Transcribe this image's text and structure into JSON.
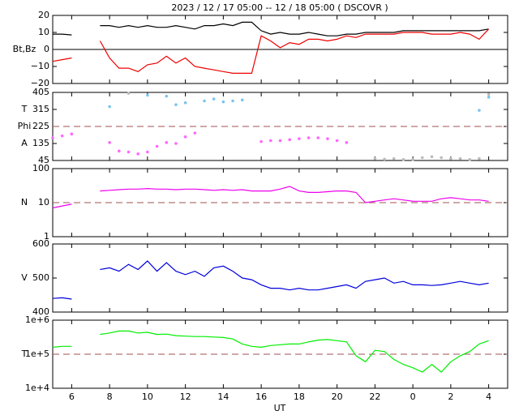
{
  "chart_data": [
    {
      "type": "line",
      "title": "2023 / 12 / 17  05:00 -- 12 / 18  05:00 ( DSCOVR )",
      "ylabel": [
        "Bt,Bz"
      ],
      "ylim": [
        -20,
        20
      ],
      "yticks": [
        {
          "value": -20,
          "label": "−20"
        },
        {
          "value": -10,
          "label": "−10"
        },
        0,
        10,
        20
      ],
      "ref_line": 0,
      "ref_style": "solid",
      "x": [
        5,
        5.5,
        6,
        6.5,
        7,
        7.5,
        8,
        8.5,
        9,
        9.5,
        10,
        10.5,
        11,
        11.5,
        12,
        12.5,
        13,
        13.5,
        14,
        14.5,
        15,
        15.5,
        16,
        16.5,
        17,
        17.5,
        18,
        18.5,
        19,
        19.5,
        20,
        20.5,
        21,
        21.5,
        22,
        22.5,
        23,
        23.5,
        24,
        24.5,
        25,
        25.5,
        26,
        26.5,
        27,
        27.5,
        28
      ],
      "series": [
        {
          "color": "#000000",
          "values": [
            9,
            9,
            8.5,
            null,
            null,
            14,
            14,
            13,
            14,
            13,
            14,
            13,
            13,
            14,
            13,
            12,
            14,
            14,
            15,
            14,
            16,
            16,
            11,
            9,
            10,
            9,
            9,
            10,
            9,
            8,
            8,
            9,
            9,
            10,
            10,
            10,
            10,
            11,
            11,
            11,
            11,
            11,
            11,
            11,
            11,
            11,
            12
          ]
        },
        {
          "color": "#ee0000",
          "values": [
            -7,
            -6,
            -5,
            null,
            null,
            5,
            -5,
            -11,
            -11,
            -13,
            -9,
            -8,
            -4,
            -8,
            -5,
            -10,
            -11,
            -12,
            -13,
            -14,
            -14,
            -14,
            8,
            5,
            1,
            4,
            3,
            6,
            6,
            5,
            6,
            8,
            7,
            9,
            9,
            9,
            9,
            10,
            10,
            10,
            9,
            9,
            9,
            10,
            9,
            6,
            12
          ]
        }
      ]
    },
    {
      "type": "scatter",
      "ylabel": [
        "T",
        "Phi",
        "A"
      ],
      "ylim": [
        45,
        405
      ],
      "yticks": [
        45,
        135,
        225,
        315,
        405
      ],
      "ref_line": 225,
      "ref_style": "dashed",
      "x": [
        5,
        5.5,
        6,
        6.5,
        7,
        7.5,
        8,
        8.5,
        9,
        9.5,
        10,
        10.5,
        11,
        11.5,
        12,
        12.5,
        13,
        13.5,
        14,
        14.5,
        15,
        15.5,
        16,
        16.5,
        17,
        17.5,
        18,
        18.5,
        19,
        19.5,
        20,
        20.5,
        21,
        21.5,
        22,
        22.5,
        23,
        23.5,
        24,
        24.5,
        25,
        25.5,
        26,
        26.5,
        27,
        27.5,
        28
      ],
      "series": [
        {
          "color": "#ff66ff",
          "values": [
            165,
            175,
            185,
            null,
            null,
            null,
            140,
            95,
            90,
            80,
            90,
            120,
            140,
            135,
            170,
            190,
            null,
            null,
            null,
            null,
            null,
            null,
            145,
            150,
            150,
            155,
            160,
            165,
            165,
            160,
            150,
            140,
            null,
            null,
            null,
            null,
            null,
            null,
            null,
            null,
            null,
            null,
            null,
            null,
            null,
            null,
            null
          ]
        },
        {
          "color": "#77c4f0",
          "values": [
            null,
            null,
            null,
            null,
            null,
            null,
            330,
            null,
            null,
            null,
            390,
            null,
            385,
            340,
            350,
            null,
            360,
            370,
            355,
            360,
            365,
            null,
            null,
            null,
            null,
            null,
            null,
            null,
            null,
            null,
            null,
            null,
            null,
            null,
            null,
            null,
            null,
            null,
            null,
            null,
            null,
            null,
            null,
            null,
            null,
            310,
            380
          ]
        },
        {
          "color": "#bbbbbb",
          "values": [
            null,
            null,
            null,
            null,
            null,
            null,
            null,
            null,
            400,
            null,
            null,
            null,
            null,
            null,
            null,
            null,
            null,
            null,
            null,
            null,
            null,
            null,
            null,
            null,
            null,
            null,
            null,
            null,
            null,
            null,
            null,
            null,
            null,
            null,
            55,
            52,
            55,
            50,
            50,
            60,
            65,
            60,
            55,
            55,
            50,
            55,
            395
          ]
        }
      ]
    },
    {
      "type": "line",
      "ylabel": [
        "N"
      ],
      "log": true,
      "ylim": [
        1,
        100
      ],
      "yticks": [
        1,
        10,
        100
      ],
      "ref_line": 10,
      "ref_style": "dashed",
      "x": [
        5,
        5.5,
        6,
        6.5,
        7,
        7.5,
        8,
        8.5,
        9,
        9.5,
        10,
        10.5,
        11,
        11.5,
        12,
        12.5,
        13,
        13.5,
        14,
        14.5,
        15,
        15.5,
        16,
        16.5,
        17,
        17.5,
        18,
        18.5,
        19,
        19.5,
        20,
        20.5,
        21,
        21.5,
        22,
        22.5,
        23,
        23.5,
        24,
        24.5,
        25,
        25.5,
        26,
        26.5,
        27,
        27.5,
        28
      ],
      "series": [
        {
          "color": "#ee00ee",
          "values": [
            7,
            8,
            9,
            null,
            null,
            22,
            23,
            24,
            25,
            25,
            26,
            25,
            25,
            24,
            25,
            25,
            24,
            23,
            24,
            23,
            24,
            22,
            22,
            22,
            25,
            30,
            22,
            20,
            20,
            21,
            22,
            22,
            20,
            10,
            11,
            12,
            13,
            12,
            11,
            11,
            11,
            13,
            14,
            13,
            12,
            12,
            11
          ]
        }
      ]
    },
    {
      "type": "line",
      "ylabel": [
        "V"
      ],
      "ylim": [
        400,
        600
      ],
      "yticks": [
        400,
        500,
        600
      ],
      "x": [
        5,
        5.5,
        6,
        6.5,
        7,
        7.5,
        8,
        8.5,
        9,
        9.5,
        10,
        10.5,
        11,
        11.5,
        12,
        12.5,
        13,
        13.5,
        14,
        14.5,
        15,
        15.5,
        16,
        16.5,
        17,
        17.5,
        18,
        18.5,
        19,
        19.5,
        20,
        20.5,
        21,
        21.5,
        22,
        22.5,
        23,
        23.5,
        24,
        24.5,
        25,
        25.5,
        26,
        26.5,
        27,
        27.5,
        28
      ],
      "series": [
        {
          "color": "#0000dd",
          "values": [
            440,
            442,
            438,
            null,
            null,
            525,
            530,
            520,
            540,
            525,
            550,
            520,
            545,
            520,
            510,
            520,
            505,
            530,
            535,
            520,
            500,
            495,
            480,
            470,
            470,
            465,
            470,
            465,
            465,
            470,
            475,
            480,
            470,
            490,
            495,
            500,
            485,
            490,
            480,
            480,
            478,
            480,
            485,
            490,
            485,
            480,
            485
          ]
        }
      ]
    },
    {
      "type": "line",
      "ylabel": [
        "T"
      ],
      "log": true,
      "xlabel": "UT",
      "ylim": [
        10000,
        1000000
      ],
      "yticks": [
        {
          "value": 10000,
          "label": "1e+4"
        },
        {
          "value": 100000,
          "label": "1e+5"
        },
        {
          "value": 1000000,
          "label": "1e+6"
        }
      ],
      "ref_line": 100000,
      "ref_style": "dashed",
      "xlim": [
        5,
        29
      ],
      "xticks": [
        6,
        8,
        10,
        12,
        14,
        16,
        18,
        20,
        22,
        {
          "value": 24,
          "label": "0"
        },
        {
          "value": 26,
          "label": "2"
        },
        {
          "value": 28,
          "label": "4"
        }
      ],
      "x": [
        5,
        5.5,
        6,
        6.5,
        7,
        7.5,
        8,
        8.5,
        9,
        9.5,
        10,
        10.5,
        11,
        11.5,
        12,
        12.5,
        13,
        13.5,
        14,
        14.5,
        15,
        15.5,
        16,
        16.5,
        17,
        17.5,
        18,
        18.5,
        19,
        19.5,
        20,
        20.5,
        21,
        21.5,
        22,
        22.5,
        23,
        23.5,
        24,
        24.5,
        25,
        25.5,
        26,
        26.5,
        27,
        27.5,
        28
      ],
      "series": [
        {
          "color": "#00ee00",
          "values": [
            160000,
            170000,
            170000,
            null,
            null,
            380000,
            420000,
            480000,
            480000,
            420000,
            440000,
            380000,
            390000,
            350000,
            340000,
            330000,
            330000,
            320000,
            310000,
            280000,
            200000,
            170000,
            160000,
            180000,
            190000,
            200000,
            200000,
            230000,
            260000,
            270000,
            250000,
            230000,
            90000,
            60000,
            130000,
            120000,
            70000,
            50000,
            40000,
            30000,
            50000,
            30000,
            60000,
            90000,
            120000,
            200000,
            250000
          ]
        }
      ]
    }
  ]
}
